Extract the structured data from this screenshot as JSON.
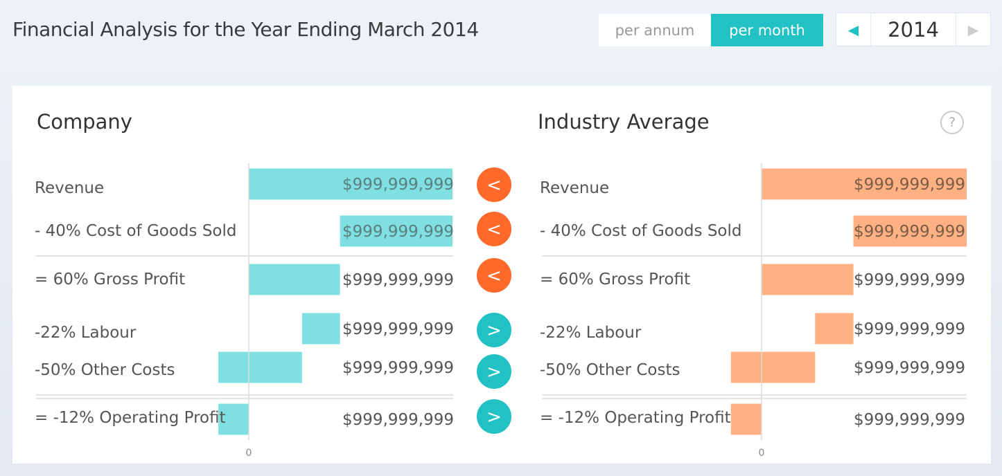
{
  "header": {
    "title": "Financial Analysis for the Year Ending March 2014"
  },
  "period_toggle": {
    "options": [
      "per annum",
      "per month"
    ],
    "selected": "per month"
  },
  "year_picker": {
    "value": "2014",
    "prev_icon": "chevron-left-icon",
    "next_icon": "chevron-right-icon"
  },
  "help_label": "?",
  "colors": {
    "accent": "#22c2c4",
    "company_bar": "#80dfe0",
    "industry_bar": "#ffb184",
    "worse": "#ff6a2a",
    "better": "#22c2c4"
  },
  "chart_data": {
    "type": "bar",
    "subtype": "waterfall",
    "xlim": [
      -10,
      67
    ],
    "zero_label": "0",
    "panels": [
      {
        "name": "Company",
        "rows": [
          {
            "label": "Revenue",
            "start": 0,
            "end": 67,
            "value_label": "$999,999,999"
          },
          {
            "label": "- 40% Cost of Goods Sold",
            "start": 30,
            "end": 67,
            "value_label": "$999,999,999"
          },
          {
            "label": "= 60% Gross Profit",
            "start": 0,
            "end": 30,
            "value_label": "$999,999,999"
          },
          {
            "label": "-22% Labour",
            "start": 17.5,
            "end": 30,
            "value_label": "$999,999,999"
          },
          {
            "label": "-50% Other Costs",
            "start": -10,
            "end": 17.5,
            "value_label": "$999,999,999"
          },
          {
            "label": "= -12% Operating Profit",
            "start": -10,
            "end": 0,
            "value_label": "$999,999,999"
          }
        ]
      },
      {
        "name": "Industry Average",
        "rows": [
          {
            "label": "Revenue",
            "start": 0,
            "end": 67,
            "value_label": "$999,999,999"
          },
          {
            "label": "- 40% Cost of Goods Sold",
            "start": 30,
            "end": 67,
            "value_label": "$999,999,999"
          },
          {
            "label": "= 60% Gross Profit",
            "start": 0,
            "end": 30,
            "value_label": "$999,999,999"
          },
          {
            "label": "-22% Labour",
            "start": 17.5,
            "end": 30,
            "value_label": "$999,999,999"
          },
          {
            "label": "-50% Other Costs",
            "start": -10,
            "end": 17.5,
            "value_label": "$999,999,999"
          },
          {
            "label": "= -12% Operating Profit",
            "start": -10,
            "end": 0,
            "value_label": "$999,999,999"
          }
        ]
      }
    ],
    "comparisons": [
      {
        "symbol": "<",
        "status": "worse"
      },
      {
        "symbol": "<",
        "status": "worse"
      },
      {
        "symbol": "<",
        "status": "worse"
      },
      {
        "symbol": ">",
        "status": "better"
      },
      {
        "symbol": ">",
        "status": "better"
      },
      {
        "symbol": ">",
        "status": "better"
      }
    ]
  }
}
